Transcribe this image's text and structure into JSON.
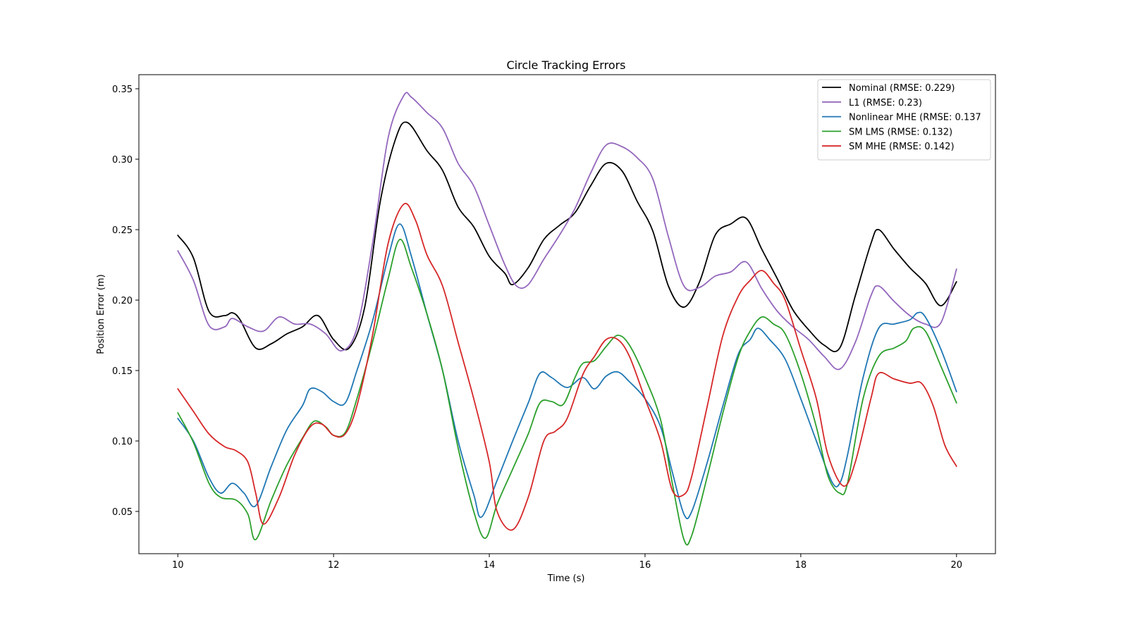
{
  "chart_data": {
    "type": "line",
    "title": "Circle Tracking Errors",
    "xlabel": "Time (s)",
    "ylabel": "Position Error (m)",
    "xlim": [
      9.5,
      20.5
    ],
    "ylim": [
      0.02,
      0.36
    ],
    "x_ticks": [
      10,
      12,
      14,
      16,
      18,
      20
    ],
    "x_tick_labels": [
      "10",
      "12",
      "14",
      "16",
      "18",
      "20"
    ],
    "y_ticks": [
      0.05,
      0.1,
      0.15,
      0.2,
      0.25,
      0.3,
      0.35
    ],
    "y_tick_labels": [
      "0.05",
      "0.10",
      "0.15",
      "0.20",
      "0.25",
      "0.30",
      "0.35"
    ],
    "grid": false,
    "legend_position": "top-right",
    "series": [
      {
        "name": "Nominal (RMSE: 0.229)",
        "color": "#000000",
        "points": [
          [
            10.0,
            0.246
          ],
          [
            10.2,
            0.23
          ],
          [
            10.4,
            0.192
          ],
          [
            10.6,
            0.189
          ],
          [
            10.7,
            0.191
          ],
          [
            10.8,
            0.186
          ],
          [
            11.0,
            0.166
          ],
          [
            11.2,
            0.169
          ],
          [
            11.4,
            0.176
          ],
          [
            11.6,
            0.181
          ],
          [
            11.8,
            0.189
          ],
          [
            12.0,
            0.172
          ],
          [
            12.2,
            0.166
          ],
          [
            12.4,
            0.195
          ],
          [
            12.6,
            0.27
          ],
          [
            12.8,
            0.315
          ],
          [
            12.95,
            0.326
          ],
          [
            13.2,
            0.306
          ],
          [
            13.4,
            0.292
          ],
          [
            13.6,
            0.266
          ],
          [
            13.8,
            0.252
          ],
          [
            14.0,
            0.231
          ],
          [
            14.2,
            0.219
          ],
          [
            14.3,
            0.211
          ],
          [
            14.5,
            0.223
          ],
          [
            14.7,
            0.243
          ],
          [
            14.9,
            0.253
          ],
          [
            15.1,
            0.262
          ],
          [
            15.3,
            0.281
          ],
          [
            15.5,
            0.297
          ],
          [
            15.7,
            0.292
          ],
          [
            15.9,
            0.27
          ],
          [
            16.1,
            0.249
          ],
          [
            16.3,
            0.21
          ],
          [
            16.5,
            0.195
          ],
          [
            16.7,
            0.213
          ],
          [
            16.9,
            0.246
          ],
          [
            17.1,
            0.254
          ],
          [
            17.3,
            0.258
          ],
          [
            17.5,
            0.236
          ],
          [
            17.7,
            0.215
          ],
          [
            17.9,
            0.193
          ],
          [
            18.1,
            0.179
          ],
          [
            18.3,
            0.168
          ],
          [
            18.5,
            0.166
          ],
          [
            18.7,
            0.203
          ],
          [
            18.9,
            0.24
          ],
          [
            19.0,
            0.25
          ],
          [
            19.2,
            0.236
          ],
          [
            19.4,
            0.223
          ],
          [
            19.6,
            0.212
          ],
          [
            19.8,
            0.196
          ],
          [
            20.0,
            0.213
          ]
        ]
      },
      {
        "name": "L1 (RMSE: 0.23)",
        "color": "#9467bd",
        "points": [
          [
            10.0,
            0.235
          ],
          [
            10.2,
            0.214
          ],
          [
            10.4,
            0.182
          ],
          [
            10.6,
            0.181
          ],
          [
            10.7,
            0.187
          ],
          [
            10.9,
            0.181
          ],
          [
            11.1,
            0.178
          ],
          [
            11.3,
            0.188
          ],
          [
            11.5,
            0.183
          ],
          [
            11.7,
            0.183
          ],
          [
            11.9,
            0.176
          ],
          [
            12.1,
            0.164
          ],
          [
            12.3,
            0.18
          ],
          [
            12.5,
            0.24
          ],
          [
            12.7,
            0.315
          ],
          [
            12.9,
            0.345
          ],
          [
            13.0,
            0.344
          ],
          [
            13.2,
            0.333
          ],
          [
            13.4,
            0.322
          ],
          [
            13.6,
            0.297
          ],
          [
            13.8,
            0.281
          ],
          [
            14.0,
            0.253
          ],
          [
            14.2,
            0.225
          ],
          [
            14.35,
            0.21
          ],
          [
            14.5,
            0.211
          ],
          [
            14.7,
            0.229
          ],
          [
            14.9,
            0.246
          ],
          [
            15.1,
            0.265
          ],
          [
            15.3,
            0.29
          ],
          [
            15.5,
            0.31
          ],
          [
            15.7,
            0.309
          ],
          [
            15.9,
            0.301
          ],
          [
            16.1,
            0.286
          ],
          [
            16.3,
            0.245
          ],
          [
            16.5,
            0.21
          ],
          [
            16.7,
            0.209
          ],
          [
            16.9,
            0.217
          ],
          [
            17.1,
            0.22
          ],
          [
            17.3,
            0.227
          ],
          [
            17.5,
            0.208
          ],
          [
            17.7,
            0.192
          ],
          [
            17.9,
            0.181
          ],
          [
            18.1,
            0.172
          ],
          [
            18.3,
            0.16
          ],
          [
            18.5,
            0.151
          ],
          [
            18.7,
            0.17
          ],
          [
            18.9,
            0.203
          ],
          [
            19.0,
            0.21
          ],
          [
            19.2,
            0.199
          ],
          [
            19.4,
            0.189
          ],
          [
            19.6,
            0.183
          ],
          [
            19.8,
            0.184
          ],
          [
            20.0,
            0.222
          ]
        ]
      },
      {
        "name": "Nonlinear MHE (RMSE: 0.137",
        "color": "#1f77b4",
        "points": [
          [
            10.0,
            0.116
          ],
          [
            10.2,
            0.1
          ],
          [
            10.4,
            0.074
          ],
          [
            10.55,
            0.063
          ],
          [
            10.7,
            0.07
          ],
          [
            10.85,
            0.063
          ],
          [
            11.0,
            0.054
          ],
          [
            11.2,
            0.082
          ],
          [
            11.4,
            0.108
          ],
          [
            11.6,
            0.125
          ],
          [
            11.7,
            0.137
          ],
          [
            11.85,
            0.135
          ],
          [
            12.0,
            0.128
          ],
          [
            12.15,
            0.127
          ],
          [
            12.3,
            0.15
          ],
          [
            12.5,
            0.185
          ],
          [
            12.7,
            0.23
          ],
          [
            12.85,
            0.254
          ],
          [
            13.0,
            0.231
          ],
          [
            13.2,
            0.19
          ],
          [
            13.4,
            0.15
          ],
          [
            13.6,
            0.1
          ],
          [
            13.8,
            0.062
          ],
          [
            13.9,
            0.046
          ],
          [
            14.1,
            0.072
          ],
          [
            14.3,
            0.1
          ],
          [
            14.5,
            0.127
          ],
          [
            14.65,
            0.148
          ],
          [
            14.8,
            0.145
          ],
          [
            15.0,
            0.138
          ],
          [
            15.2,
            0.145
          ],
          [
            15.35,
            0.137
          ],
          [
            15.5,
            0.146
          ],
          [
            15.65,
            0.149
          ],
          [
            15.8,
            0.142
          ],
          [
            16.0,
            0.13
          ],
          [
            16.2,
            0.11
          ],
          [
            16.35,
            0.078
          ],
          [
            16.5,
            0.048
          ],
          [
            16.6,
            0.05
          ],
          [
            16.8,
            0.085
          ],
          [
            17.0,
            0.125
          ],
          [
            17.2,
            0.162
          ],
          [
            17.35,
            0.172
          ],
          [
            17.45,
            0.18
          ],
          [
            17.6,
            0.172
          ],
          [
            17.8,
            0.158
          ],
          [
            18.0,
            0.13
          ],
          [
            18.2,
            0.1
          ],
          [
            18.4,
            0.071
          ],
          [
            18.5,
            0.07
          ],
          [
            18.6,
            0.09
          ],
          [
            18.8,
            0.145
          ],
          [
            19.0,
            0.18
          ],
          [
            19.2,
            0.183
          ],
          [
            19.4,
            0.186
          ],
          [
            19.5,
            0.191
          ],
          [
            19.6,
            0.188
          ],
          [
            19.8,
            0.165
          ],
          [
            20.0,
            0.135
          ]
        ]
      },
      {
        "name": "SM LMS (RMSE: 0.132)",
        "color": "#2ca02c",
        "points": [
          [
            10.0,
            0.12
          ],
          [
            10.2,
            0.099
          ],
          [
            10.4,
            0.07
          ],
          [
            10.55,
            0.06
          ],
          [
            10.75,
            0.058
          ],
          [
            10.9,
            0.048
          ],
          [
            11.0,
            0.03
          ],
          [
            11.2,
            0.058
          ],
          [
            11.4,
            0.083
          ],
          [
            11.6,
            0.102
          ],
          [
            11.75,
            0.114
          ],
          [
            11.9,
            0.11
          ],
          [
            12.0,
            0.104
          ],
          [
            12.15,
            0.106
          ],
          [
            12.3,
            0.13
          ],
          [
            12.5,
            0.17
          ],
          [
            12.7,
            0.215
          ],
          [
            12.85,
            0.243
          ],
          [
            13.0,
            0.223
          ],
          [
            13.2,
            0.19
          ],
          [
            13.4,
            0.15
          ],
          [
            13.6,
            0.095
          ],
          [
            13.8,
            0.05
          ],
          [
            13.95,
            0.031
          ],
          [
            14.1,
            0.055
          ],
          [
            14.3,
            0.08
          ],
          [
            14.5,
            0.105
          ],
          [
            14.65,
            0.127
          ],
          [
            14.8,
            0.128
          ],
          [
            14.95,
            0.126
          ],
          [
            15.1,
            0.145
          ],
          [
            15.2,
            0.155
          ],
          [
            15.35,
            0.157
          ],
          [
            15.5,
            0.167
          ],
          [
            15.65,
            0.175
          ],
          [
            15.8,
            0.168
          ],
          [
            16.0,
            0.145
          ],
          [
            16.2,
            0.115
          ],
          [
            16.35,
            0.07
          ],
          [
            16.5,
            0.03
          ],
          [
            16.6,
            0.033
          ],
          [
            16.8,
            0.075
          ],
          [
            17.0,
            0.12
          ],
          [
            17.2,
            0.16
          ],
          [
            17.35,
            0.178
          ],
          [
            17.5,
            0.188
          ],
          [
            17.65,
            0.183
          ],
          [
            17.8,
            0.176
          ],
          [
            18.0,
            0.148
          ],
          [
            18.2,
            0.11
          ],
          [
            18.35,
            0.075
          ],
          [
            18.5,
            0.063
          ],
          [
            18.6,
            0.07
          ],
          [
            18.8,
            0.13
          ],
          [
            19.0,
            0.16
          ],
          [
            19.2,
            0.166
          ],
          [
            19.35,
            0.171
          ],
          [
            19.45,
            0.18
          ],
          [
            19.6,
            0.178
          ],
          [
            19.8,
            0.153
          ],
          [
            20.0,
            0.127
          ]
        ]
      },
      {
        "name": "SM MHE (RMSE: 0.142)",
        "color": "#d62728",
        "points": [
          [
            10.0,
            0.137
          ],
          [
            10.2,
            0.121
          ],
          [
            10.4,
            0.105
          ],
          [
            10.6,
            0.096
          ],
          [
            10.75,
            0.093
          ],
          [
            10.9,
            0.085
          ],
          [
            11.0,
            0.063
          ],
          [
            11.1,
            0.041
          ],
          [
            11.3,
            0.06
          ],
          [
            11.5,
            0.09
          ],
          [
            11.7,
            0.11
          ],
          [
            11.85,
            0.112
          ],
          [
            12.0,
            0.104
          ],
          [
            12.15,
            0.105
          ],
          [
            12.3,
            0.125
          ],
          [
            12.5,
            0.175
          ],
          [
            12.7,
            0.24
          ],
          [
            12.9,
            0.268
          ],
          [
            13.05,
            0.257
          ],
          [
            13.2,
            0.232
          ],
          [
            13.4,
            0.21
          ],
          [
            13.6,
            0.17
          ],
          [
            13.8,
            0.13
          ],
          [
            14.0,
            0.085
          ],
          [
            14.1,
            0.05
          ],
          [
            14.3,
            0.037
          ],
          [
            14.5,
            0.06
          ],
          [
            14.7,
            0.1
          ],
          [
            14.85,
            0.107
          ],
          [
            15.0,
            0.116
          ],
          [
            15.2,
            0.147
          ],
          [
            15.35,
            0.16
          ],
          [
            15.5,
            0.172
          ],
          [
            15.65,
            0.172
          ],
          [
            15.8,
            0.16
          ],
          [
            16.0,
            0.13
          ],
          [
            16.2,
            0.1
          ],
          [
            16.35,
            0.065
          ],
          [
            16.5,
            0.062
          ],
          [
            16.6,
            0.075
          ],
          [
            16.8,
            0.125
          ],
          [
            17.0,
            0.175
          ],
          [
            17.2,
            0.203
          ],
          [
            17.35,
            0.214
          ],
          [
            17.5,
            0.221
          ],
          [
            17.65,
            0.212
          ],
          [
            17.8,
            0.2
          ],
          [
            18.0,
            0.165
          ],
          [
            18.2,
            0.13
          ],
          [
            18.35,
            0.09
          ],
          [
            18.55,
            0.068
          ],
          [
            18.7,
            0.085
          ],
          [
            18.9,
            0.13
          ],
          [
            19.0,
            0.148
          ],
          [
            19.2,
            0.144
          ],
          [
            19.4,
            0.141
          ],
          [
            19.55,
            0.141
          ],
          [
            19.7,
            0.125
          ],
          [
            19.85,
            0.097
          ],
          [
            20.0,
            0.082
          ]
        ]
      }
    ]
  }
}
